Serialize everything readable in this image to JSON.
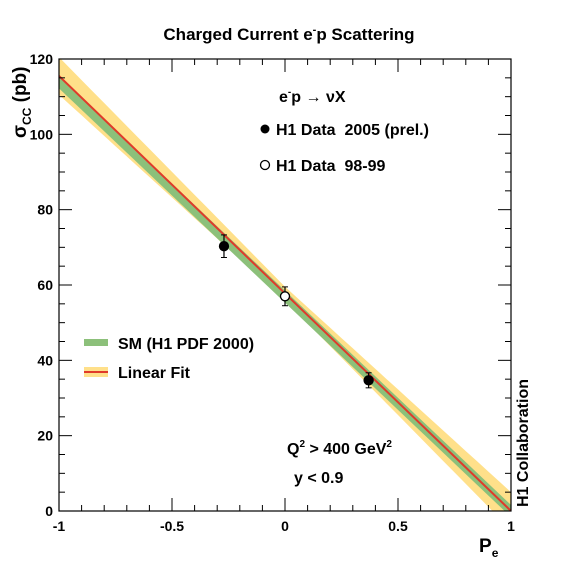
{
  "chart_data": {
    "type": "scatter",
    "title": "Charged Current e",
    "title_sup": "-",
    "title_end": "p Scattering",
    "ylabel_main": "σ",
    "ylabel_sub": "CC",
    "ylabel_unit": "(pb)",
    "xlabel_main": "P",
    "xlabel_sub": "e",
    "xlim": [
      -1,
      1
    ],
    "ylim": [
      0,
      120
    ],
    "x_ticks": [
      -1,
      -0.5,
      0,
      0.5,
      1
    ],
    "x_tick_labels": [
      "-1",
      "-0.5",
      "0",
      "0.5",
      "1"
    ],
    "y_ticks": [
      0,
      20,
      40,
      60,
      80,
      100,
      120
    ],
    "y_tick_labels": [
      "0",
      "20",
      "40",
      "60",
      "80",
      "100",
      "120"
    ],
    "process": {
      "p1": "e",
      "sup": "-",
      "p2": "p",
      "arrow": "→",
      "p3": "νX"
    },
    "series": [
      {
        "name": "H1 Data  2005 (prel.)",
        "marker": "filled-circle",
        "x": [
          -0.27,
          0.37
        ],
        "y": [
          70.3,
          34.7
        ],
        "yerr": [
          3.0,
          2.0
        ]
      },
      {
        "name": "H1 Data  98-99",
        "marker": "open-circle",
        "x": [
          0.0
        ],
        "y": [
          57.0
        ],
        "yerr": [
          2.5
        ]
      }
    ],
    "bands": [
      {
        "name": "SM (H1 PDF 2000)",
        "color": "#8cc07a",
        "x": [
          -1,
          1
        ],
        "y": [
          113.8,
          0
        ],
        "halfwidth": 1.6
      },
      {
        "name": "Linear Fit",
        "color": "#e03a2a",
        "band_color": "#ffe08a",
        "x": [
          -1,
          1
        ],
        "y": [
          115.5,
          0
        ],
        "halfwidth_at_x": [
          [
            -1,
            5
          ],
          [
            0,
            1.8
          ],
          [
            1,
            5
          ]
        ]
      }
    ],
    "annotations": {
      "q2_pre": "Q",
      "q2_sup": "2",
      "q2_post": " > 400 GeV",
      "q2_unit_sup": "2",
      "y_cut": "y < 0.9",
      "collaboration": "H1 Collaboration"
    },
    "legend_placement": "center-left"
  }
}
